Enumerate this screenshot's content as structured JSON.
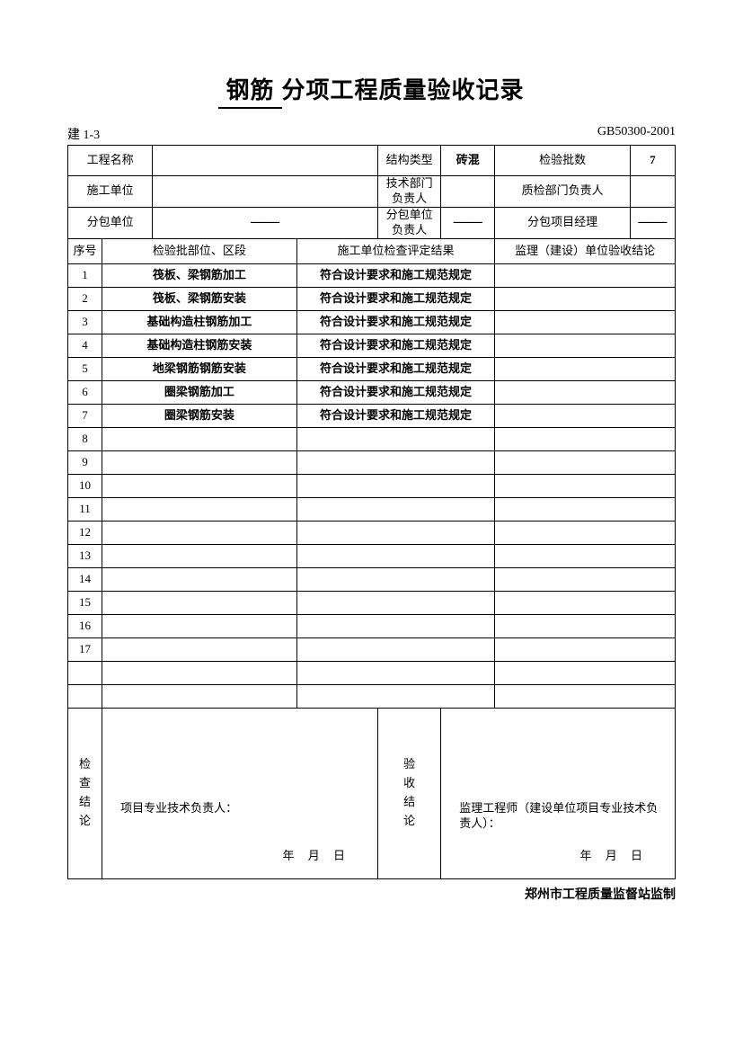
{
  "title_prefix": "钢筋",
  "title_suffix": "分项工程质量验收记录",
  "meta_left": "建 1-3",
  "meta_right": "GB50300-2001",
  "header": {
    "proj_name_label": "工程名称",
    "struct_type_label": "结构类型",
    "struct_type_value": "砖混",
    "batch_count_label": "检验批数",
    "batch_count_value": "7",
    "constructor_label": "施工单位",
    "tech_dept_label": "技术部门\n负责人",
    "qc_dept_label": "质检部门负责人",
    "subcontractor_label": "分包单位",
    "subcontractor_value": "——",
    "sub_unit_head_label": "分包单位\n负责人",
    "sub_unit_head_value": "——",
    "sub_pm_label": "分包项目经理",
    "sub_pm_value": "——"
  },
  "columns": {
    "seq": "序号",
    "section": "检验批部位、区段",
    "result": "施工单位检查评定结果",
    "conclusion": "监理（建设）单位验收结论"
  },
  "rows": [
    {
      "n": "1",
      "section": "筏板、梁钢筋加工",
      "result": "符合设计要求和施工规范规定"
    },
    {
      "n": "2",
      "section": "筏板、梁钢筋安装",
      "result": "符合设计要求和施工规范规定"
    },
    {
      "n": "3",
      "section": "基础构造柱钢筋加工",
      "result": "符合设计要求和施工规范规定"
    },
    {
      "n": "4",
      "section": "基础构造柱钢筋安装",
      "result": "符合设计要求和施工规范规定"
    },
    {
      "n": "5",
      "section": "地梁钢筋钢筋安装",
      "result": "符合设计要求和施工规范规定"
    },
    {
      "n": "6",
      "section": "圈梁钢筋加工",
      "result": "符合设计要求和施工规范规定"
    },
    {
      "n": "7",
      "section": "圈梁钢筋安装",
      "result": "符合设计要求和施工规范规定"
    },
    {
      "n": "8",
      "section": "",
      "result": ""
    },
    {
      "n": "9",
      "section": "",
      "result": ""
    },
    {
      "n": "10",
      "section": "",
      "result": ""
    },
    {
      "n": "11",
      "section": "",
      "result": ""
    },
    {
      "n": "12",
      "section": "",
      "result": ""
    },
    {
      "n": "13",
      "section": "",
      "result": ""
    },
    {
      "n": "14",
      "section": "",
      "result": ""
    },
    {
      "n": "15",
      "section": "",
      "result": ""
    },
    {
      "n": "16",
      "section": "",
      "result": ""
    },
    {
      "n": "17",
      "section": "",
      "result": ""
    },
    {
      "n": "",
      "section": "",
      "result": ""
    },
    {
      "n": "",
      "section": "",
      "result": ""
    }
  ],
  "footer": {
    "check_label": "检\n查\n结\n论",
    "accept_label": "验\n收\n结\n论",
    "proj_tech_head": "项目专业技术负责人：",
    "supervisor": "监理工程师（建设单位项目专业技术负责人）：",
    "date": "年  月  日"
  },
  "bottom_note": "郑州市工程质量监督站监制"
}
